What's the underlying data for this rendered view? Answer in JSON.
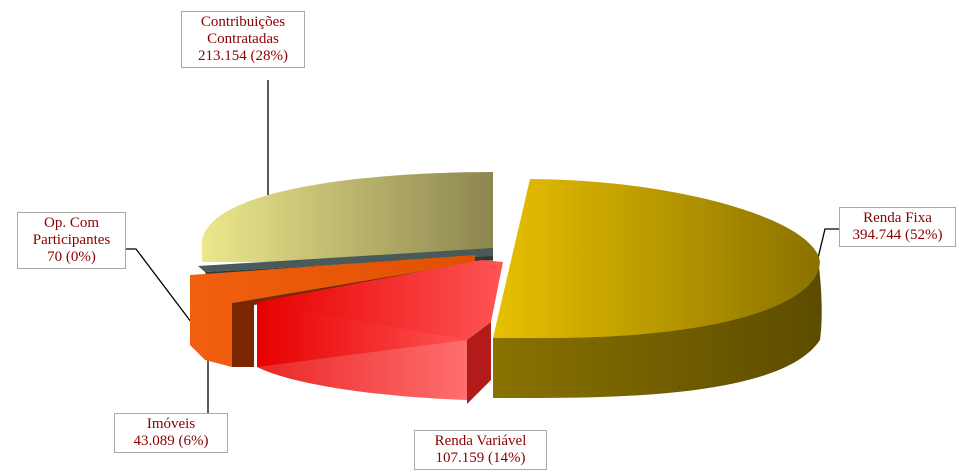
{
  "chart_data": {
    "type": "pie",
    "style": "3d-exploded",
    "unit": "",
    "slices": [
      {
        "key": "renda_fixa",
        "name_lines": [
          "Renda Fixa"
        ],
        "value_text": "394.744 (52%)",
        "value": 394744,
        "percent": 52,
        "colors": {
          "light": "#e8c000",
          "dark": "#8a7200",
          "side": "#5c4c00"
        }
      },
      {
        "key": "renda_variavel",
        "name_lines": [
          "Renda Variável"
        ],
        "value_text": "107.159 (14%)",
        "value": 107159,
        "percent": 14,
        "colors": {
          "light": "#ff5555",
          "dark": "#e60000",
          "side": "#b31a1a"
        }
      },
      {
        "key": "imoveis",
        "name_lines": [
          "Imóveis"
        ],
        "value_text": "43.089 (6%)",
        "value": 43089,
        "percent": 6,
        "colors": {
          "light": "#f06010",
          "dark": "#e05000",
          "side": "#7a2600"
        }
      },
      {
        "key": "op_com_participantes",
        "name_lines": [
          "Op. Com",
          "Participantes"
        ],
        "value_text": "70 (0%)",
        "value": 70,
        "percent": 0,
        "colors": {
          "light": "#8fa0a0",
          "dark": "#4a5a5a",
          "side": "#2e3a3a"
        }
      },
      {
        "key": "contribuicoes_contratadas",
        "name_lines": [
          "Contribuições",
          "Contratadas"
        ],
        "value_text": "213.154 (28%)",
        "value": 213154,
        "percent": 28,
        "colors": {
          "light": "#ece88c",
          "dark": "#8c8650",
          "side": "#6e6a40"
        }
      }
    ]
  }
}
